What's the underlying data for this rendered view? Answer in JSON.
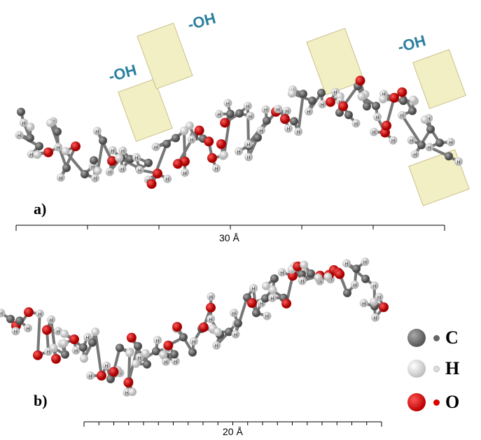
{
  "panels": [
    {
      "label": "a)",
      "scale_label": "30 Å",
      "hydroxyl_labels": [
        "-OH",
        "-OH",
        "-OH"
      ],
      "hbond_color": "#1e7fd6"
    },
    {
      "label": "b)",
      "scale_label": "20 Å",
      "hbond_color": "#f06ad8"
    }
  ],
  "legend": [
    {
      "symbol": "C",
      "color": "#666666"
    },
    {
      "symbol": "H",
      "color": "#e6e6e6"
    },
    {
      "symbol": "O",
      "color": "#dd0f0f"
    }
  ],
  "highlight_color": "#f3efc4",
  "atom_label": "H"
}
